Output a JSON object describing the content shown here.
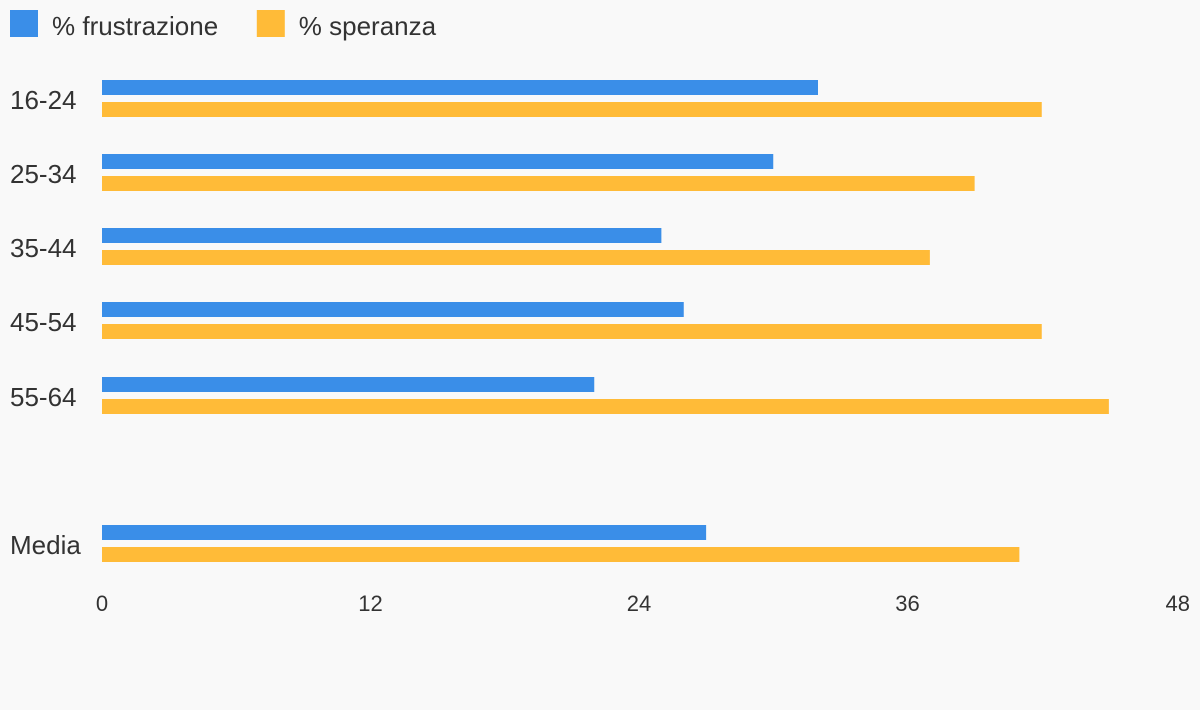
{
  "chart_data": {
    "type": "bar",
    "orientation": "horizontal",
    "categories": [
      "16-24",
      "25-34",
      "35-44",
      "45-54",
      "55-64",
      "Media"
    ],
    "series": [
      {
        "name": "% frustrazione",
        "color": "#3a8ee8",
        "values": [
          32,
          30,
          25,
          26,
          22,
          27
        ]
      },
      {
        "name": "% speranza",
        "color": "#ffbb38",
        "values": [
          42,
          39,
          37,
          42,
          45,
          41
        ]
      }
    ],
    "xlim": [
      0,
      48
    ],
    "xticks": [
      "0",
      "12",
      "24",
      "36",
      "48"
    ],
    "grid": false,
    "legend_position": "top-left"
  }
}
